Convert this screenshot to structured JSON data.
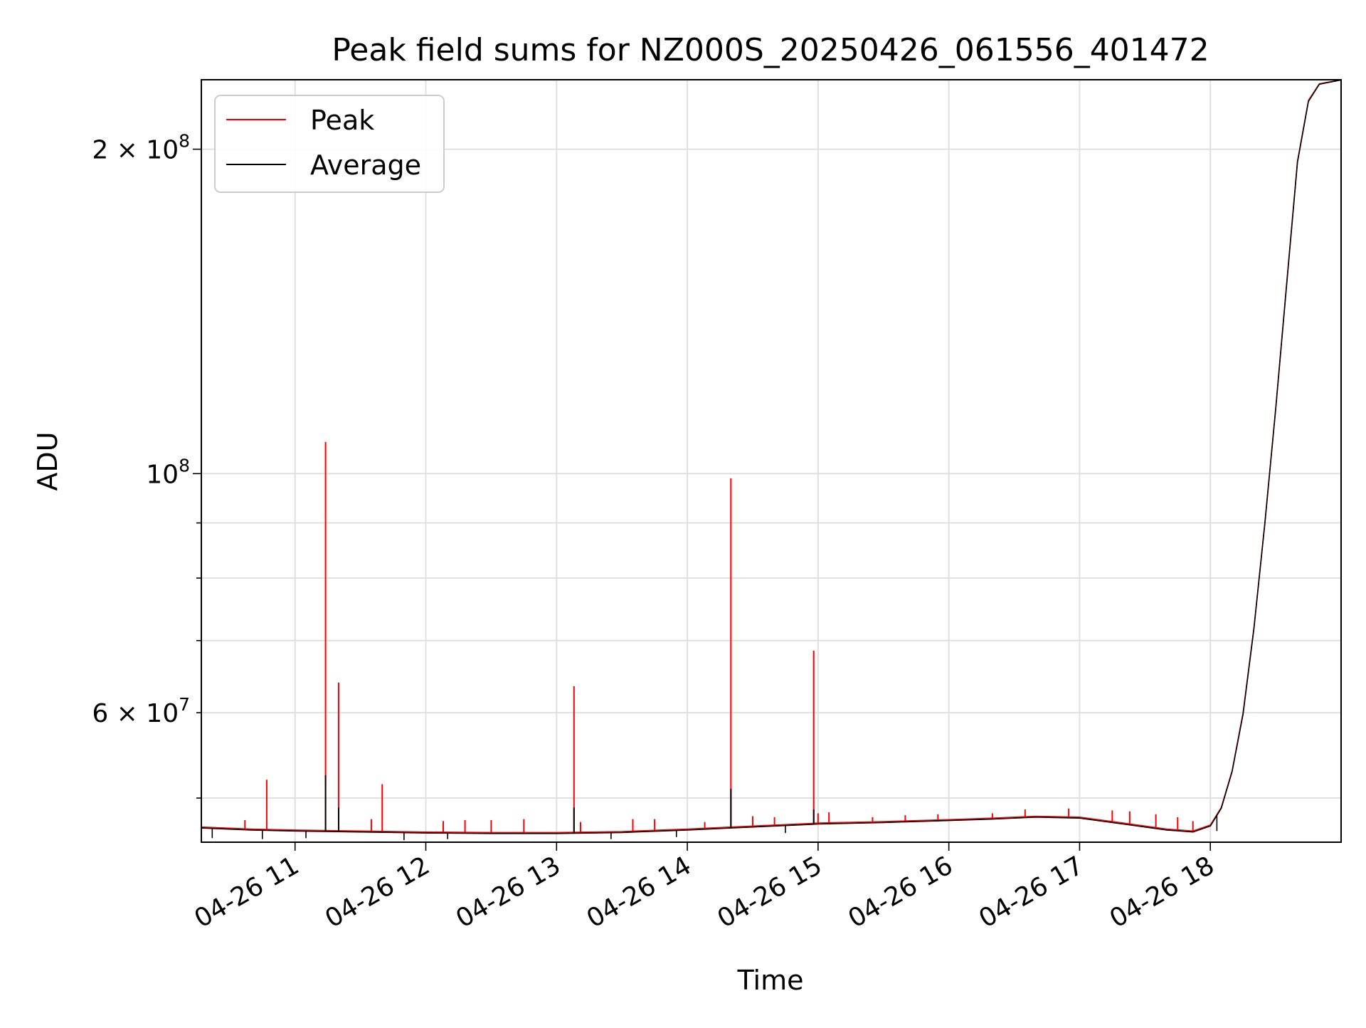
{
  "chart_data": {
    "type": "line",
    "title": "Peak field sums for NZ000S_20250426_061556_401472",
    "xlabel": "Time",
    "ylabel": "ADU",
    "y_scale": "log",
    "xlim": [
      "2025-04-26 10:17",
      "2025-04-26 19:00"
    ],
    "ylim": [
      45500000,
      232000000
    ],
    "x_ticks": [
      {
        "value": "2025-04-26 11:00",
        "label": "04-26 11"
      },
      {
        "value": "2025-04-26 12:00",
        "label": "04-26 12"
      },
      {
        "value": "2025-04-26 13:00",
        "label": "04-26 13"
      },
      {
        "value": "2025-04-26 14:00",
        "label": "04-26 14"
      },
      {
        "value": "2025-04-26 15:00",
        "label": "04-26 15"
      },
      {
        "value": "2025-04-26 16:00",
        "label": "04-26 16"
      },
      {
        "value": "2025-04-26 17:00",
        "label": "04-26 17"
      },
      {
        "value": "2025-04-26 18:00",
        "label": "04-26 18"
      }
    ],
    "y_major_ticks": [
      {
        "value": 100000000,
        "base": "10",
        "exp": "8"
      },
      {
        "value": 200000000,
        "base": "2 × 10",
        "exp": "8"
      }
    ],
    "y_minor_ticks": [
      {
        "value": 50000000
      },
      {
        "value": 60000000,
        "base": "6 × 10",
        "exp": "7"
      },
      {
        "value": 70000000
      },
      {
        "value": 80000000
      },
      {
        "value": 90000000
      }
    ],
    "grid": true,
    "legend_position": "upper-left",
    "series": [
      {
        "name": "Peak",
        "color": "#ff0000",
        "points": [
          [
            "2025-04-26 10:17",
            47000000
          ],
          [
            "2025-04-26 10:40",
            46800000
          ],
          [
            "2025-04-26 11:00",
            46700000
          ],
          [
            "2025-04-26 11:30",
            46600000
          ],
          [
            "2025-04-26 12:00",
            46500000
          ],
          [
            "2025-04-26 12:30",
            46450000
          ],
          [
            "2025-04-26 13:00",
            46450000
          ],
          [
            "2025-04-26 13:30",
            46550000
          ],
          [
            "2025-04-26 14:00",
            46800000
          ],
          [
            "2025-04-26 14:30",
            47100000
          ],
          [
            "2025-04-26 15:00",
            47400000
          ],
          [
            "2025-04-26 15:30",
            47550000
          ],
          [
            "2025-04-26 16:00",
            47750000
          ],
          [
            "2025-04-26 16:20",
            47900000
          ],
          [
            "2025-04-26 16:40",
            48100000
          ],
          [
            "2025-04-26 17:00",
            48000000
          ],
          [
            "2025-04-26 17:20",
            47400000
          ],
          [
            "2025-04-26 17:40",
            46800000
          ],
          [
            "2025-04-26 17:52",
            46600000
          ],
          [
            "2025-04-26 18:00",
            47200000
          ],
          [
            "2025-04-26 18:05",
            49000000
          ],
          [
            "2025-04-26 18:10",
            53000000
          ],
          [
            "2025-04-26 18:15",
            60000000
          ],
          [
            "2025-04-26 18:20",
            72000000
          ],
          [
            "2025-04-26 18:25",
            90000000
          ],
          [
            "2025-04-26 18:30",
            115000000
          ],
          [
            "2025-04-26 18:35",
            150000000
          ],
          [
            "2025-04-26 18:40",
            195000000
          ],
          [
            "2025-04-26 18:45",
            222000000
          ],
          [
            "2025-04-26 18:50",
            230000000
          ],
          [
            "2025-04-26 19:00",
            232000000
          ]
        ],
        "spikes": [
          [
            "2025-04-26 10:37",
            47700000
          ],
          [
            "2025-04-26 10:47",
            52000000
          ],
          [
            "2025-04-26 11:14",
            107000000
          ],
          [
            "2025-04-26 11:20",
            64000000
          ],
          [
            "2025-04-26 11:35",
            47800000
          ],
          [
            "2025-04-26 11:40",
            51500000
          ],
          [
            "2025-04-26 12:08",
            47600000
          ],
          [
            "2025-04-26 12:18",
            47700000
          ],
          [
            "2025-04-26 12:30",
            47700000
          ],
          [
            "2025-04-26 12:45",
            47800000
          ],
          [
            "2025-04-26 13:08",
            63500000
          ],
          [
            "2025-04-26 13:11",
            47500000
          ],
          [
            "2025-04-26 13:35",
            47800000
          ],
          [
            "2025-04-26 13:45",
            47800000
          ],
          [
            "2025-04-26 14:08",
            47500000
          ],
          [
            "2025-04-26 14:20",
            99000000
          ],
          [
            "2025-04-26 14:30",
            48100000
          ],
          [
            "2025-04-26 14:40",
            48000000
          ],
          [
            "2025-04-26 14:58",
            68500000
          ],
          [
            "2025-04-26 15:00",
            48400000
          ],
          [
            "2025-04-26 15:05",
            48500000
          ],
          [
            "2025-04-26 15:25",
            48000000
          ],
          [
            "2025-04-26 15:40",
            48200000
          ],
          [
            "2025-04-26 15:55",
            48300000
          ],
          [
            "2025-04-26 16:20",
            48400000
          ],
          [
            "2025-04-26 16:35",
            48800000
          ],
          [
            "2025-04-26 16:55",
            48900000
          ],
          [
            "2025-04-26 17:15",
            48700000
          ],
          [
            "2025-04-26 17:23",
            48600000
          ],
          [
            "2025-04-26 17:35",
            48300000
          ],
          [
            "2025-04-26 17:45",
            48000000
          ],
          [
            "2025-04-26 17:52",
            47600000
          ]
        ]
      },
      {
        "name": "Average",
        "color": "#000000",
        "points": [
          [
            "2025-04-26 10:17",
            46900000
          ],
          [
            "2025-04-26 10:40",
            46700000
          ],
          [
            "2025-04-26 11:00",
            46600000
          ],
          [
            "2025-04-26 11:30",
            46500000
          ],
          [
            "2025-04-26 12:00",
            46400000
          ],
          [
            "2025-04-26 12:30",
            46350000
          ],
          [
            "2025-04-26 13:00",
            46350000
          ],
          [
            "2025-04-26 13:30",
            46450000
          ],
          [
            "2025-04-26 14:00",
            46700000
          ],
          [
            "2025-04-26 14:30",
            47000000
          ],
          [
            "2025-04-26 15:00",
            47300000
          ],
          [
            "2025-04-26 15:30",
            47450000
          ],
          [
            "2025-04-26 16:00",
            47650000
          ],
          [
            "2025-04-26 16:20",
            47800000
          ],
          [
            "2025-04-26 16:40",
            48000000
          ],
          [
            "2025-04-26 17:00",
            47900000
          ],
          [
            "2025-04-26 17:20",
            47300000
          ],
          [
            "2025-04-26 17:40",
            46700000
          ],
          [
            "2025-04-26 17:52",
            46500000
          ],
          [
            "2025-04-26 18:00",
            47100000
          ],
          [
            "2025-04-26 18:05",
            48900000
          ],
          [
            "2025-04-26 18:10",
            52900000
          ],
          [
            "2025-04-26 18:15",
            59800000
          ],
          [
            "2025-04-26 18:20",
            71800000
          ],
          [
            "2025-04-26 18:25",
            89800000
          ],
          [
            "2025-04-26 18:30",
            114800000
          ],
          [
            "2025-04-26 18:35",
            149500000
          ],
          [
            "2025-04-26 18:40",
            194500000
          ],
          [
            "2025-04-26 18:45",
            221500000
          ],
          [
            "2025-04-26 18:50",
            229800000
          ],
          [
            "2025-04-26 19:00",
            231900000
          ]
        ],
        "spikes": [
          [
            "2025-04-26 11:14",
            52500000
          ],
          [
            "2025-04-26 11:20",
            49000000
          ],
          [
            "2025-04-26 13:08",
            49000000
          ],
          [
            "2025-04-26 14:20",
            51000000
          ],
          [
            "2025-04-26 14:58",
            48800000
          ]
        ],
        "dips": [
          [
            "2025-04-26 10:22",
            45900000
          ],
          [
            "2025-04-26 10:45",
            45800000
          ],
          [
            "2025-04-26 11:05",
            45900000
          ],
          [
            "2025-04-26 11:50",
            45700000
          ],
          [
            "2025-04-26 12:10",
            45800000
          ],
          [
            "2025-04-26 13:25",
            45800000
          ],
          [
            "2025-04-26 13:55",
            46000000
          ],
          [
            "2025-04-26 14:45",
            46400000
          ],
          [
            "2025-04-26 18:03",
            46600000
          ]
        ]
      }
    ]
  }
}
